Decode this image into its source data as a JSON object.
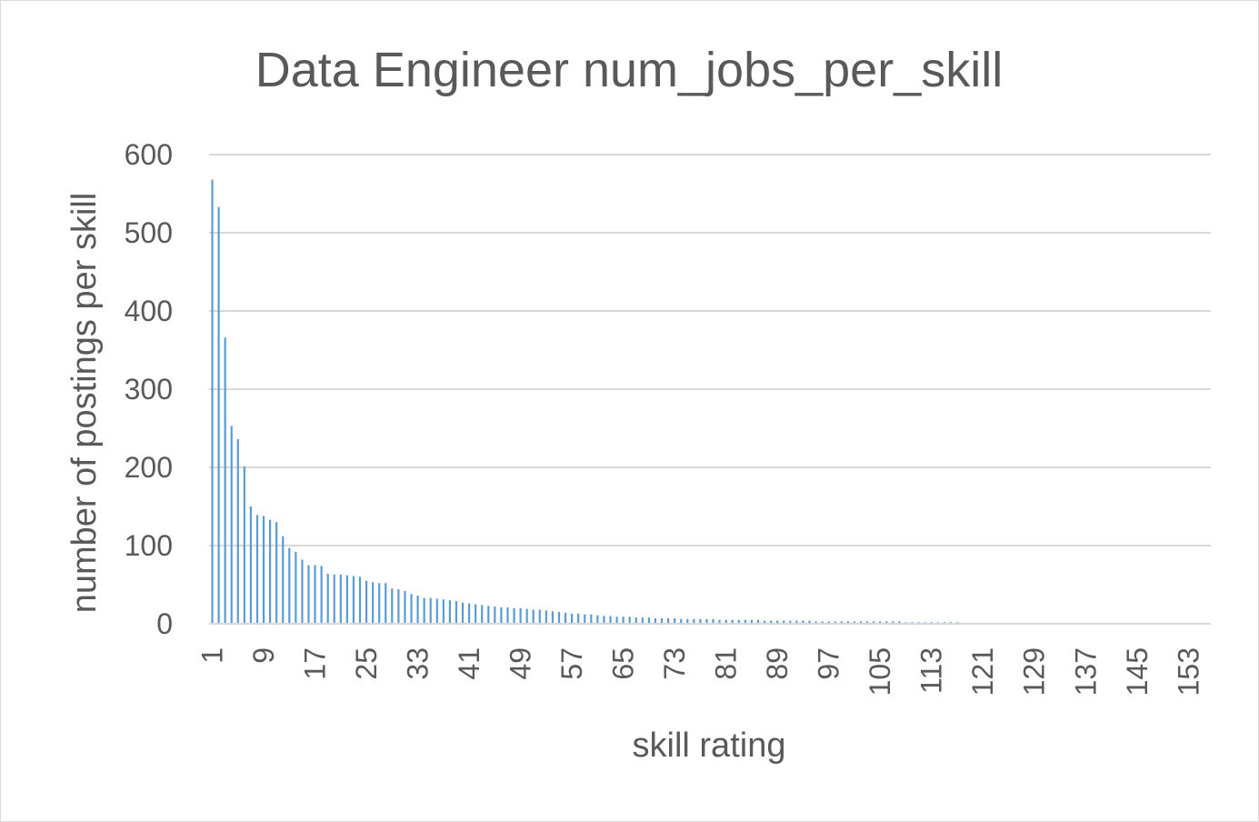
{
  "chart_data": {
    "type": "bar",
    "title": "Data Engineer num_jobs_per_skill",
    "xlabel": "skill rating",
    "ylabel": "number of postings per skill",
    "ylim": [
      0,
      600
    ],
    "y_ticks": [
      "0",
      "100",
      "200",
      "300",
      "400",
      "500",
      "600"
    ],
    "x_tick_labels": [
      "1",
      "9",
      "17",
      "25",
      "33",
      "41",
      "49",
      "57",
      "65",
      "73",
      "81",
      "89",
      "97",
      "105",
      "113",
      "121",
      "129",
      "137",
      "145",
      "153"
    ],
    "grid": true,
    "legend": "none",
    "color": "#5b9bd5",
    "categories_range": [
      1,
      156
    ],
    "values": [
      568,
      533,
      366,
      253,
      236,
      201,
      150,
      139,
      138,
      133,
      130,
      112,
      97,
      92,
      82,
      75,
      75,
      74,
      64,
      63,
      63,
      62,
      61,
      60,
      55,
      53,
      52,
      52,
      45,
      44,
      42,
      38,
      36,
      33,
      33,
      32,
      31,
      30,
      29,
      27,
      26,
      25,
      24,
      23,
      22,
      21,
      21,
      20,
      20,
      19,
      18,
      18,
      17,
      16,
      15,
      14,
      13,
      13,
      12,
      12,
      11,
      10,
      10,
      9,
      9,
      9,
      8,
      8,
      8,
      7,
      7,
      7,
      7,
      6,
      6,
      6,
      6,
      6,
      6,
      5,
      5,
      5,
      5,
      5,
      5,
      5,
      4,
      4,
      4,
      4,
      4,
      4,
      4,
      4,
      3,
      3,
      3,
      3,
      3,
      3,
      3,
      3,
      3,
      3,
      3,
      3,
      3,
      3,
      2,
      2,
      2,
      2,
      2,
      2,
      2,
      2,
      2,
      1,
      1,
      1,
      1,
      1,
      1,
      1,
      1,
      1,
      1,
      1,
      1,
      1,
      1,
      1,
      1,
      1,
      1,
      1,
      1,
      1,
      1,
      1,
      1,
      1,
      1,
      1,
      1,
      1,
      1,
      1,
      1,
      1,
      1,
      1,
      1,
      1,
      1,
      1
    ]
  }
}
